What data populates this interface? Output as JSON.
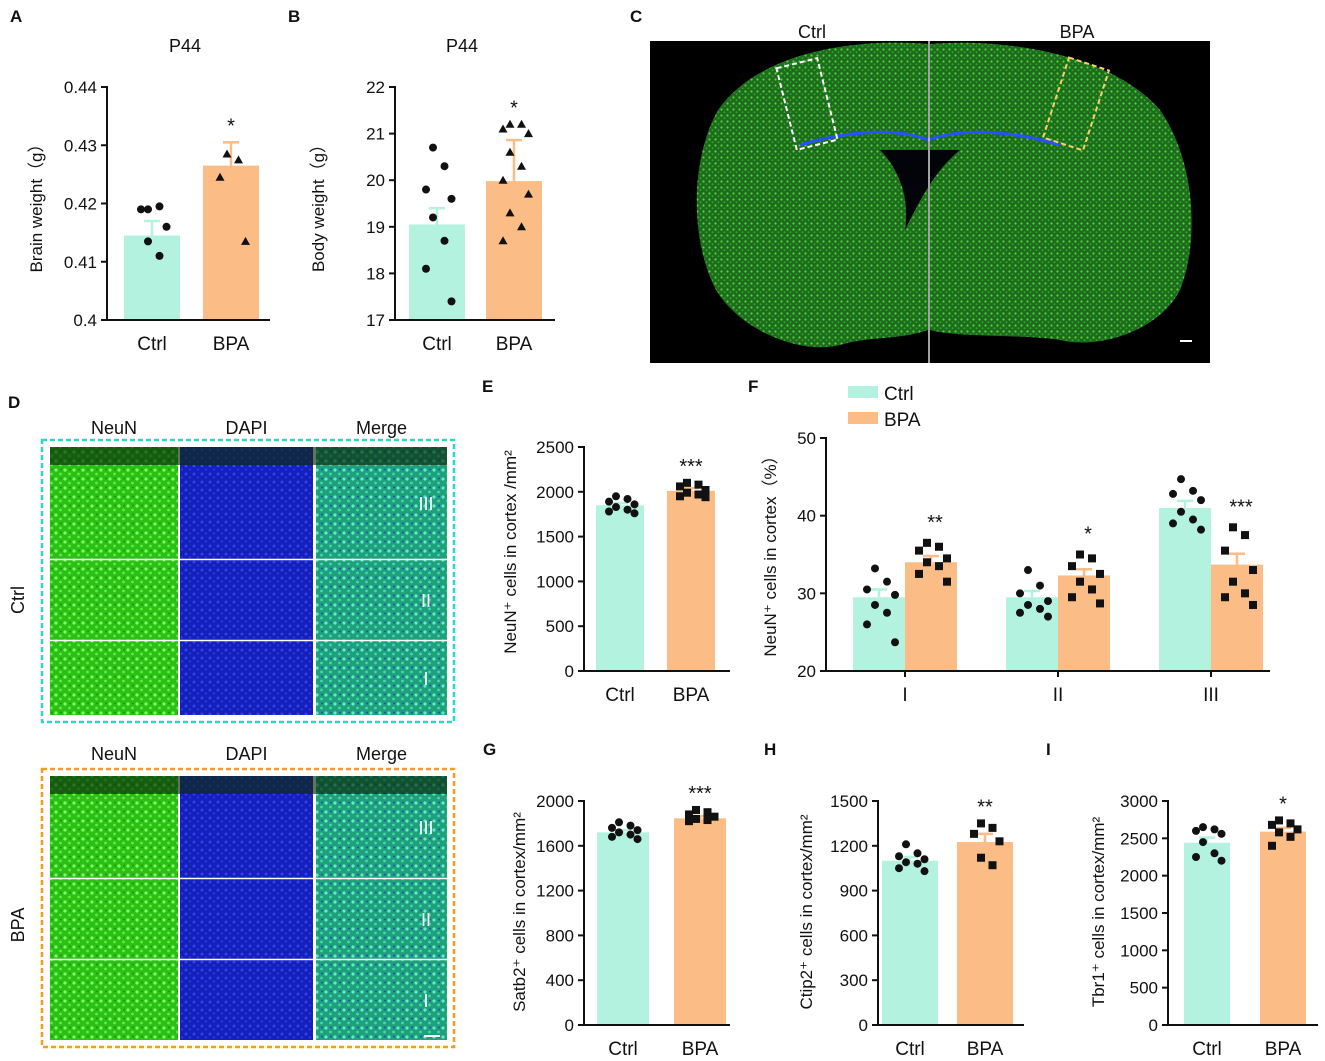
{
  "colors": {
    "ctrl": "#b3f2df",
    "bpa": "#fbbc85",
    "neun": "#37d61f",
    "dapi": "#1a2bd8",
    "merge": "#2fd6a6",
    "ctrl_frame": "#2fd6c8",
    "bpa_frame": "#f0a020"
  },
  "panel_letters": [
    "A",
    "B",
    "C",
    "D",
    "E",
    "F",
    "G",
    "H",
    "I"
  ],
  "panel_c": {
    "left_label": "Ctrl",
    "right_label": "BPA",
    "scale_bar": ""
  },
  "panel_d": {
    "headers": [
      "NeuN",
      "DAPI",
      "Merge"
    ],
    "groups": [
      "Ctrl",
      "BPA"
    ],
    "layers": [
      "III",
      "II",
      "I"
    ]
  },
  "chart_data": [
    {
      "id": "A",
      "type": "bar",
      "title": "P44",
      "ylabel": "Brain weight（g）",
      "categories": [
        "Ctrl",
        "BPA"
      ],
      "values": [
        0.4145,
        0.4265
      ],
      "errors": [
        0.0025,
        0.004
      ],
      "ylim": [
        0.4,
        0.44
      ],
      "yticks": [
        "0.4",
        "0.41",
        "0.42",
        "0.43",
        "0.44"
      ],
      "ytick_values": [
        0.4,
        0.41,
        0.42,
        0.43,
        0.44
      ],
      "significance": [
        "",
        "*"
      ],
      "points": [
        [
          0.419,
          0.4195,
          0.419,
          0.416,
          0.4135,
          0.411
        ],
        [
          0.4285,
          0.4275,
          0.4245,
          0.4135
        ]
      ],
      "markers": [
        "circle",
        "triangle"
      ]
    },
    {
      "id": "B",
      "type": "bar",
      "title": "P44",
      "ylabel": "Body weight（g）",
      "categories": [
        "Ctrl",
        "BPA"
      ],
      "values": [
        19.05,
        19.98
      ],
      "errors": [
        0.35,
        0.88
      ],
      "ylim": [
        17,
        22
      ],
      "yticks": [
        "17",
        "18",
        "19",
        "20",
        "21",
        "22"
      ],
      "ytick_values": [
        17,
        18,
        19,
        20,
        21,
        22
      ],
      "significance": [
        "",
        "*"
      ],
      "points": [
        [
          20.7,
          20.3,
          19.8,
          19.6,
          19.2,
          18.7,
          18.1,
          17.4
        ],
        [
          21.2,
          21.2,
          21.1,
          21.0,
          20.6,
          20.3,
          20.0,
          19.7,
          19.3,
          19.0,
          18.7
        ]
      ],
      "markers": [
        "circle",
        "triangle"
      ]
    },
    {
      "id": "E",
      "type": "bar",
      "ylabel": "NeuN⁺ cells in cortex /mm²",
      "categories": [
        "Ctrl",
        "BPA"
      ],
      "values": [
        1850,
        2010
      ],
      "errors": [
        25,
        30
      ],
      "ylim": [
        0,
        2500
      ],
      "yticks": [
        "0",
        "500",
        "1000",
        "1500",
        "2000",
        "2500"
      ],
      "ytick_values": [
        0,
        500,
        1000,
        1500,
        2000,
        2500
      ],
      "significance": [
        "",
        "***"
      ],
      "points": [
        [
          1950,
          1920,
          1890,
          1860,
          1830,
          1800,
          1780,
          1760
        ],
        [
          2100,
          2080,
          2060,
          2020,
          1990,
          1970,
          1950,
          1940
        ]
      ],
      "markers": [
        "circle",
        "square"
      ]
    },
    {
      "id": "F",
      "type": "bar",
      "ylabel": "NeuN⁺ cells in cortex（%）",
      "categories": [
        "I",
        "II",
        "III"
      ],
      "series": [
        {
          "name": "Ctrl",
          "values": [
            29.5,
            29.5,
            41.0
          ],
          "errors": [
            1.0,
            0.8,
            0.9
          ]
        },
        {
          "name": "BPA",
          "values": [
            34.0,
            32.3,
            33.7
          ],
          "errors": [
            0.8,
            0.8,
            1.4
          ]
        }
      ],
      "ylim": [
        20,
        50
      ],
      "yticks": [
        "20",
        "30",
        "40",
        "50"
      ],
      "ytick_values": [
        20,
        30,
        40,
        50
      ],
      "significance": [
        "**",
        "*",
        "***"
      ],
      "points": [
        [
          [
            33.2,
            31.5,
            30.5,
            29.8,
            28.5,
            27.5,
            26.0,
            23.7
          ],
          [
            33.0,
            31.0,
            30.0,
            29.0,
            28.5,
            28.0,
            27.5,
            27.0
          ],
          [
            44.7,
            43.2,
            42.8,
            42.0,
            40.5,
            39.5,
            39.0,
            38.2
          ]
        ],
        [
          [
            36.5,
            36.0,
            35.5,
            34.5,
            34.0,
            33.5,
            32.5,
            31.5
          ],
          [
            35.0,
            34.5,
            33.5,
            32.5,
            31.5,
            30.5,
            29.5,
            28.7
          ],
          [
            38.5,
            37.5,
            35.5,
            33.0,
            31.5,
            30.0,
            29.5,
            28.5
          ]
        ]
      ],
      "legend": [
        "Ctrl",
        "BPA"
      ]
    },
    {
      "id": "G",
      "type": "bar",
      "ylabel": "Satb2⁺ cells in cortex/mm²",
      "categories": [
        "Ctrl",
        "BPA"
      ],
      "values": [
        1720,
        1845
      ],
      "errors": [
        20,
        20
      ],
      "ylim": [
        0,
        2000
      ],
      "yticks": [
        "0",
        "400",
        "800",
        "1200",
        "1600",
        "2000"
      ],
      "ytick_values": [
        0,
        400,
        800,
        1200,
        1600,
        2000
      ],
      "significance": [
        "",
        "***"
      ],
      "points": [
        [
          1810,
          1780,
          1760,
          1740,
          1720,
          1700,
          1680,
          1660
        ],
        [
          1920,
          1900,
          1880,
          1860,
          1840,
          1830,
          1820
        ]
      ],
      "markers": [
        "circle",
        "square"
      ]
    },
    {
      "id": "H",
      "type": "bar",
      "ylabel": "Ctip2⁺ cells in cortex/mm²",
      "categories": [
        "Ctrl",
        "BPA"
      ],
      "values": [
        1100,
        1225
      ],
      "errors": [
        25,
        55
      ],
      "ylim": [
        0,
        1500
      ],
      "yticks": [
        "0",
        "300",
        "600",
        "900",
        "1200",
        "1500"
      ],
      "ytick_values": [
        0,
        300,
        600,
        900,
        1200,
        1500
      ],
      "significance": [
        "",
        "**"
      ],
      "points": [
        [
          1210,
          1150,
          1130,
          1110,
          1090,
          1080,
          1050,
          1030
        ],
        [
          1350,
          1320,
          1280,
          1230,
          1120,
          1070
        ]
      ],
      "markers": [
        "circle",
        "square"
      ]
    },
    {
      "id": "I",
      "type": "bar",
      "ylabel": "Tbr1⁺  cells in cortex/mm²",
      "categories": [
        "Ctrl",
        "BPA"
      ],
      "values": [
        2440,
        2590
      ],
      "errors": [
        70,
        50
      ],
      "ylim": [
        0,
        3000
      ],
      "yticks": [
        "0",
        "500",
        "1000",
        "1500",
        "2000",
        "2500",
        "3000"
      ],
      "ytick_values": [
        0,
        500,
        1000,
        1500,
        2000,
        2500,
        3000
      ],
      "significance": [
        "",
        "*"
      ],
      "points": [
        [
          2650,
          2620,
          2600,
          2560,
          2450,
          2300,
          2250,
          2200
        ],
        [
          2740,
          2700,
          2680,
          2620,
          2580,
          2520,
          2400
        ]
      ],
      "markers": [
        "circle",
        "square"
      ]
    }
  ]
}
